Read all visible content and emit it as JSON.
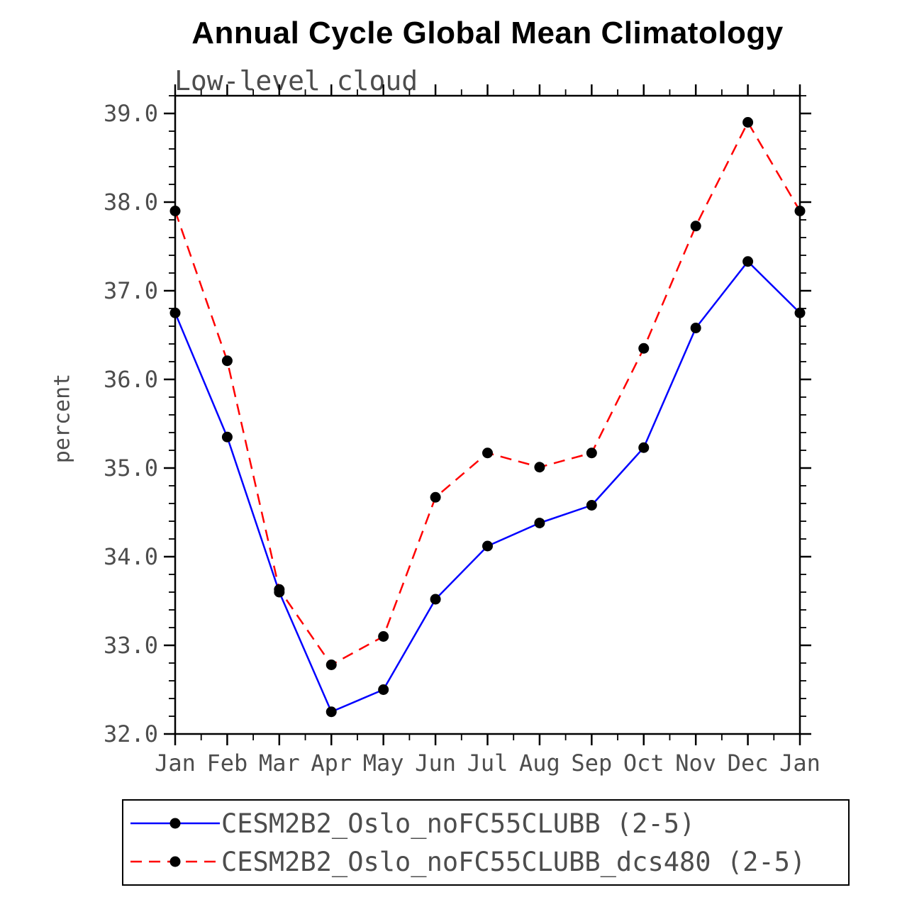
{
  "chart_data": {
    "type": "line",
    "title": "Annual Cycle Global Mean Climatology",
    "subtitle": "Low-level cloud",
    "xlabel": "",
    "ylabel": "percent",
    "categories": [
      "Jan",
      "Feb",
      "Mar",
      "Apr",
      "May",
      "Jun",
      "Jul",
      "Aug",
      "Sep",
      "Oct",
      "Nov",
      "Dec",
      "Jan"
    ],
    "ylim": [
      32.0,
      39.2
    ],
    "yticks": [
      32.0,
      33.0,
      34.0,
      35.0,
      36.0,
      37.0,
      38.0,
      39.0
    ],
    "ytick_labels": [
      "32.0",
      "33.0",
      "34.0",
      "35.0",
      "36.0",
      "37.0",
      "38.0",
      "39.0"
    ],
    "minor_tick_interval": 0.2,
    "grid": false,
    "legend_position": "bottom",
    "series": [
      {
        "name": "CESM2B2_Oslo_noFC55CLUBB (2-5)",
        "color": "#0000ff",
        "style": "solid",
        "marker": "circle",
        "marker_color": "#000000",
        "values": [
          36.75,
          35.35,
          33.6,
          32.25,
          32.5,
          33.52,
          34.12,
          34.38,
          34.58,
          35.23,
          36.58,
          37.33,
          36.75
        ]
      },
      {
        "name": "CESM2B2_Oslo_noFC55CLUBB_dcs480 (2-5)",
        "color": "#ff0000",
        "style": "dashed",
        "marker": "circle",
        "marker_color": "#000000",
        "values": [
          37.9,
          36.21,
          33.63,
          32.78,
          33.1,
          34.67,
          35.17,
          35.01,
          35.17,
          36.35,
          37.73,
          38.9,
          37.9
        ]
      }
    ]
  },
  "colors": {
    "axis": "#000000",
    "tick_label": "#4d4d4d",
    "title": "#000000",
    "background": "#ffffff"
  }
}
